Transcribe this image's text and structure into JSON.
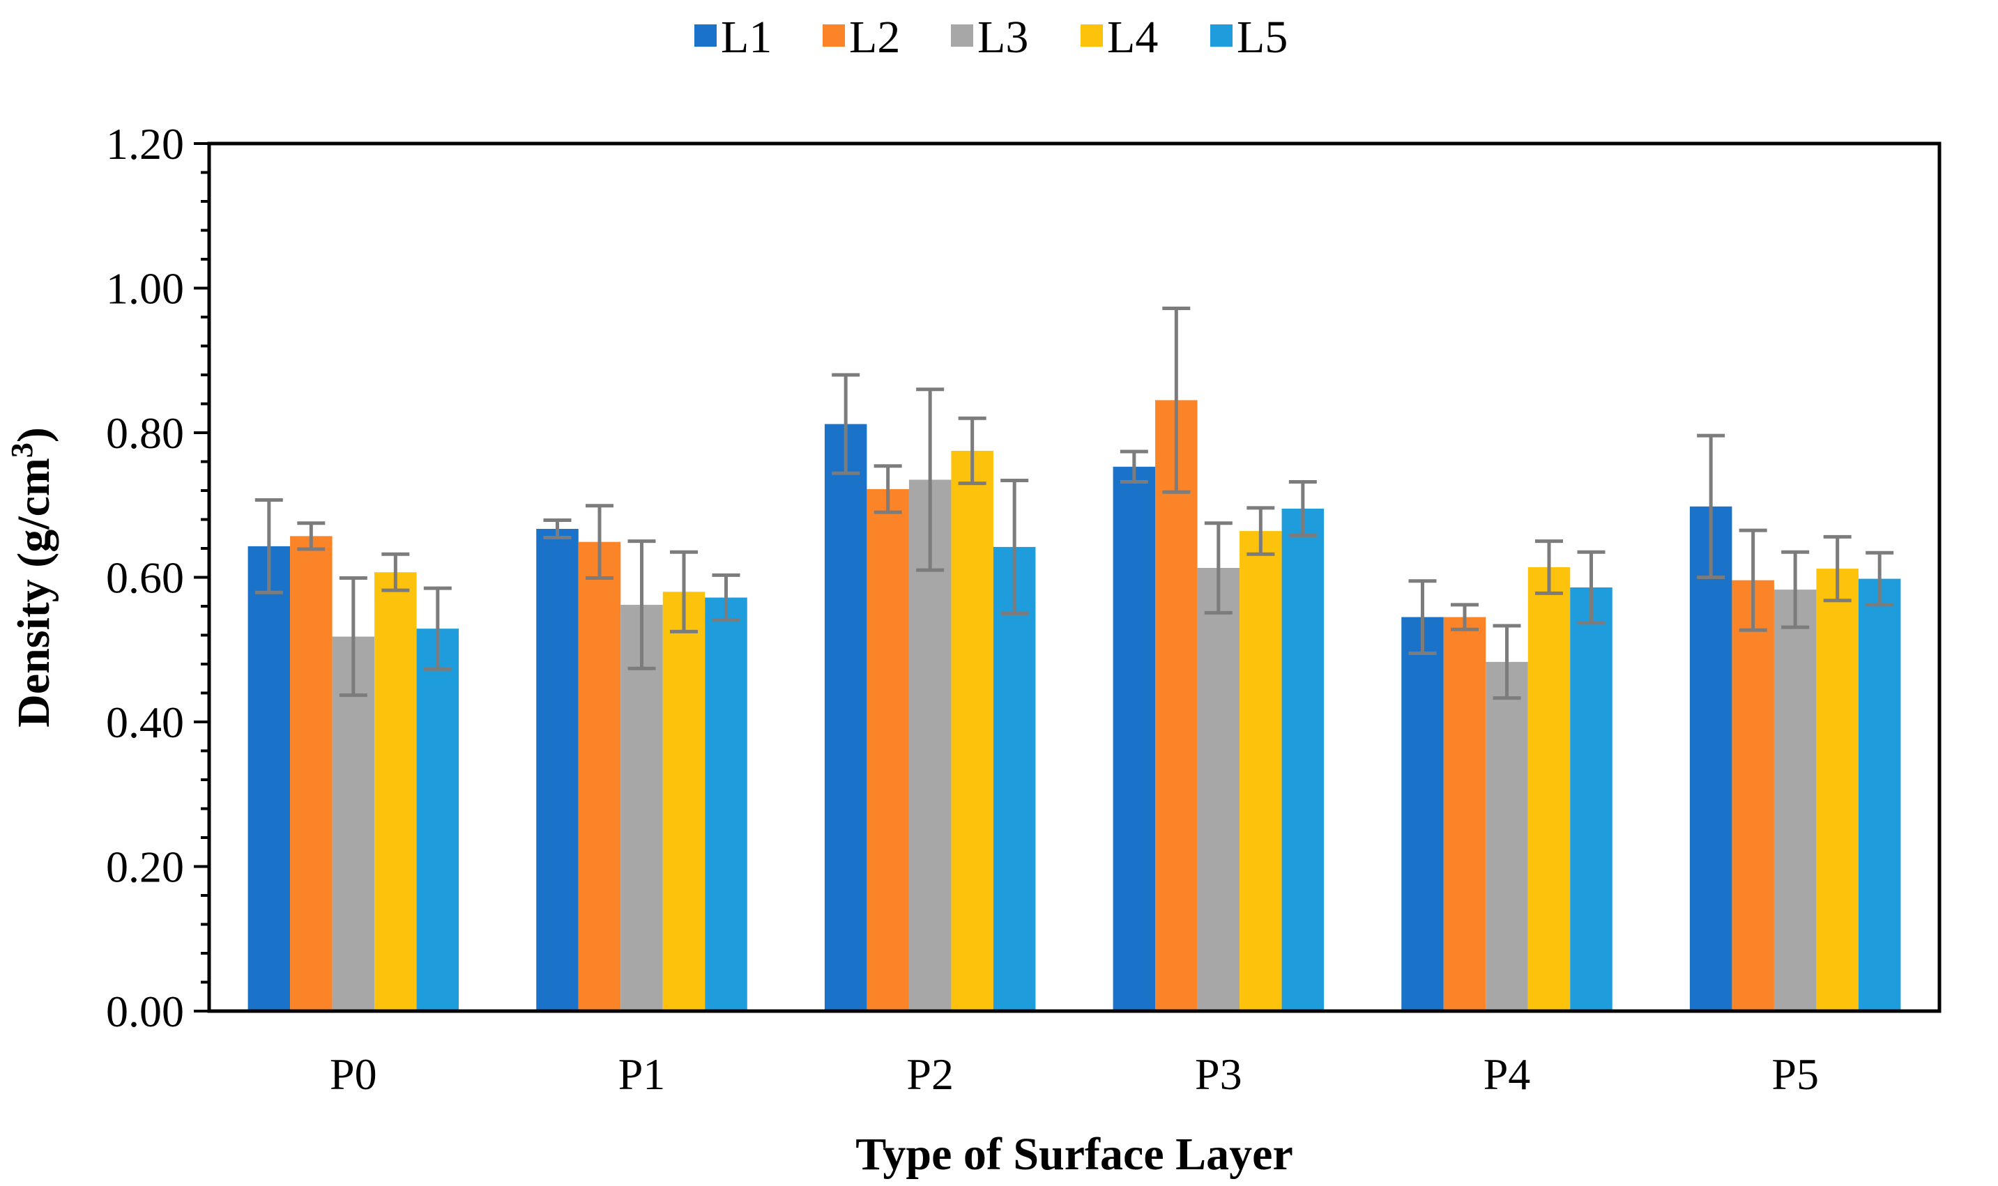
{
  "chart_data": {
    "type": "bar",
    "title": "",
    "xlabel": "Type of Surface Layer",
    "ylabel": "Density (g/cm",
    "ylabel_superscript": "3",
    "ylabel_suffix": ")",
    "ylim": [
      0,
      1.2
    ],
    "yticks": [
      "0.00",
      "0.20",
      "0.40",
      "0.60",
      "0.80",
      "1.00",
      "1.20"
    ],
    "y_minor_step": 0.04,
    "grid": false,
    "legend_position": "top-center",
    "categories": [
      "P0",
      "P1",
      "P2",
      "P3",
      "P4",
      "P5"
    ],
    "series": [
      {
        "name": "L1",
        "color": "#1a73c8",
        "values": [
          0.643,
          0.667,
          0.812,
          0.753,
          0.545,
          0.698
        ],
        "errors": [
          0.064,
          0.012,
          0.068,
          0.021,
          0.05,
          0.098
        ]
      },
      {
        "name": "L2",
        "color": "#fb8428",
        "values": [
          0.657,
          0.649,
          0.722,
          0.845,
          0.545,
          0.596
        ],
        "errors": [
          0.018,
          0.05,
          0.032,
          0.127,
          0.017,
          0.069
        ]
      },
      {
        "name": "L3",
        "color": "#a7a7a7",
        "values": [
          0.518,
          0.562,
          0.735,
          0.613,
          0.483,
          0.583
        ],
        "errors": [
          0.081,
          0.088,
          0.125,
          0.062,
          0.05,
          0.052
        ]
      },
      {
        "name": "L4",
        "color": "#fdc20b",
        "values": [
          0.607,
          0.58,
          0.775,
          0.664,
          0.614,
          0.612
        ],
        "errors": [
          0.025,
          0.055,
          0.045,
          0.032,
          0.036,
          0.044
        ]
      },
      {
        "name": "L5",
        "color": "#1f9cdb",
        "values": [
          0.529,
          0.572,
          0.642,
          0.695,
          0.586,
          0.598
        ],
        "errors": [
          0.056,
          0.031,
          0.092,
          0.037,
          0.049,
          0.036
        ]
      }
    ],
    "error_bar_color": "#7c7c7c"
  }
}
